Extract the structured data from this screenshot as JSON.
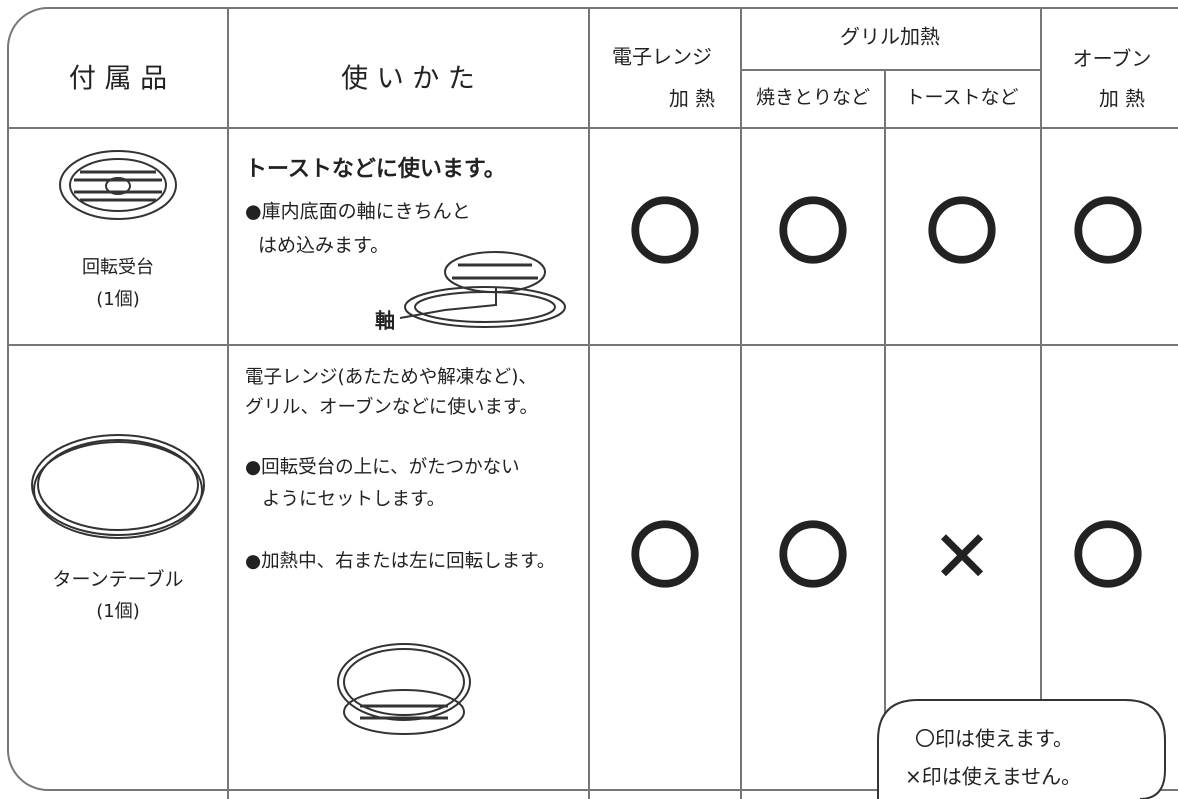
{
  "header": {
    "accessory": "付 属 品",
    "usage": "使 い か た",
    "microwave": [
      "電子レンジ",
      "加 熱"
    ],
    "grill": "グリル加熱",
    "grill_sub": [
      "焼きとりなど",
      "トーストなど"
    ],
    "oven": [
      "オーブン",
      "加 熱"
    ]
  },
  "rows": [
    {
      "name": "回転受台",
      "count": "(1個)",
      "usage_title": "トーストなどに使います。",
      "usage_lines": [
        "●庫内底面の軸にきちんと",
        "はめ込みます。"
      ],
      "axis_label": "軸",
      "marks": [
        "〇",
        "〇",
        "〇",
        "〇"
      ]
    },
    {
      "name": "ターンテーブル",
      "count": "(1個)",
      "usage_lines": [
        "電子レンジ(あたためや解凍など)、",
        "グリル、オーブンなどに使います。",
        "●回転受台の上に、がたつかない",
        "ようにセットします。",
        "●加熱中、右または左に回転します。"
      ],
      "marks": [
        "〇",
        "〇",
        "✕",
        "〇"
      ]
    }
  ],
  "legend": [
    "〇印は使えます。",
    "×印は使えません。"
  ]
}
